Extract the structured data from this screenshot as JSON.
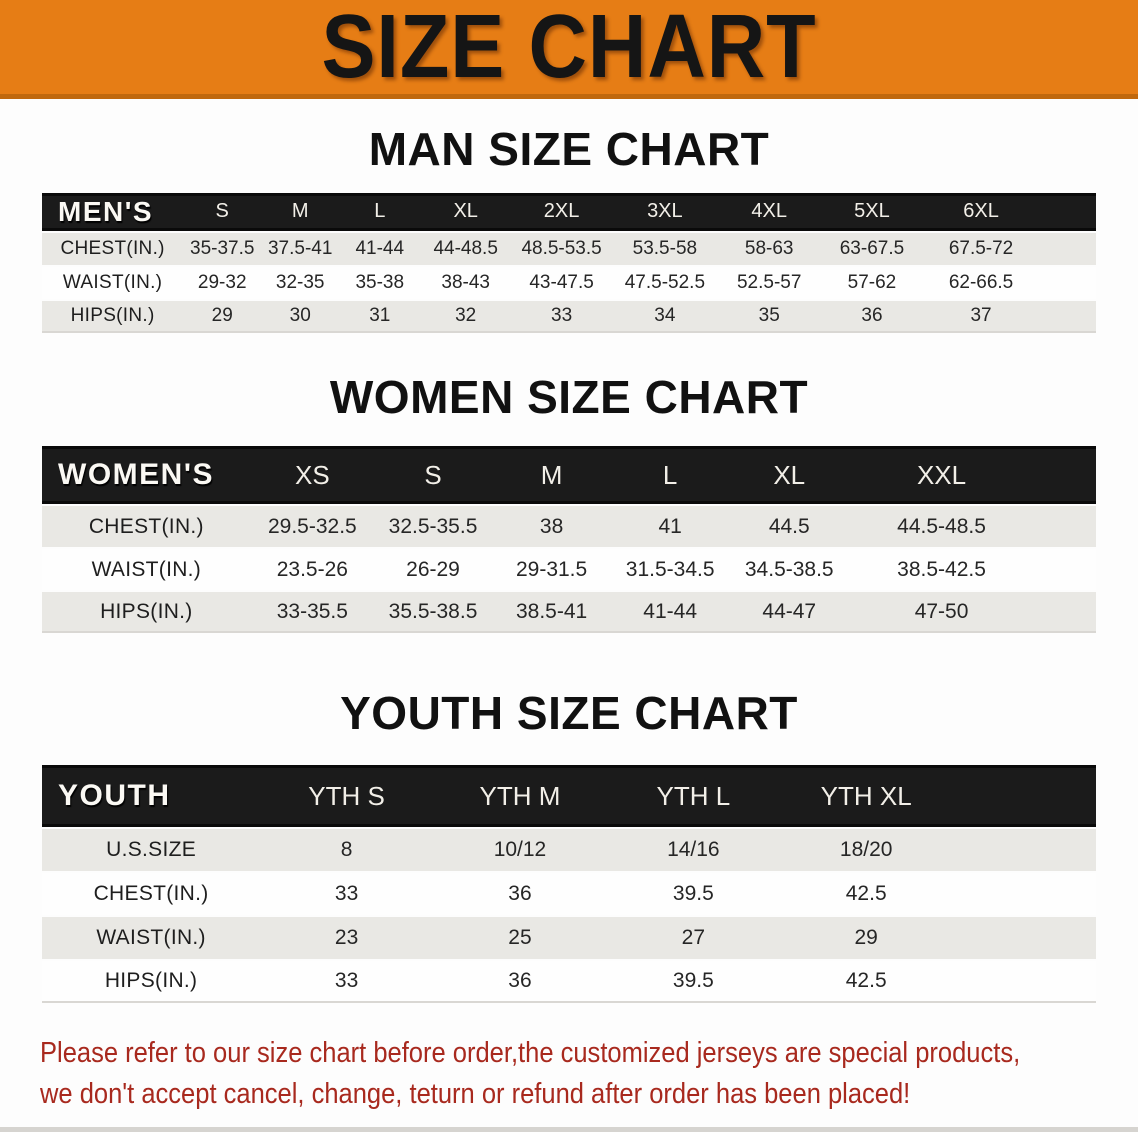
{
  "banner": {
    "title": "SIZE CHART"
  },
  "chart_data": [
    {
      "type": "table",
      "title": "MAN SIZE CHART",
      "corner_label": "MEN'S",
      "columns": [
        "S",
        "M",
        "L",
        "XL",
        "2XL",
        "3XL",
        "4XL",
        "5XL",
        "6XL"
      ],
      "rows": [
        {
          "label": "CHEST(IN.)",
          "values": [
            "35-37.5",
            "37.5-41",
            "41-44",
            "44-48.5",
            "48.5-53.5",
            "53.5-58",
            "58-63",
            "63-67.5",
            "67.5-72"
          ]
        },
        {
          "label": "WAIST(IN.)",
          "values": [
            "29-32",
            "32-35",
            "35-38",
            "38-43",
            "43-47.5",
            "47.5-52.5",
            "52.5-57",
            "57-62",
            "62-66.5"
          ]
        },
        {
          "label": "HIPS(IN.)",
          "values": [
            "29",
            "30",
            "31",
            "32",
            "33",
            "34",
            "35",
            "36",
            "37"
          ]
        }
      ]
    },
    {
      "type": "table",
      "title": "WOMEN SIZE CHART",
      "corner_label": "WOMEN'S",
      "columns": [
        "XS",
        "S",
        "M",
        "L",
        "XL",
        "XXL"
      ],
      "rows": [
        {
          "label": "CHEST(IN.)",
          "values": [
            "29.5-32.5",
            "32.5-35.5",
            "38",
            "41",
            "44.5",
            "44.5-48.5"
          ]
        },
        {
          "label": "WAIST(IN.)",
          "values": [
            "23.5-26",
            "26-29",
            "29-31.5",
            "31.5-34.5",
            "34.5-38.5",
            "38.5-42.5"
          ]
        },
        {
          "label": "HIPS(IN.)",
          "values": [
            "33-35.5",
            "35.5-38.5",
            "38.5-41",
            "41-44",
            "44-47",
            "47-50"
          ]
        }
      ]
    },
    {
      "type": "table",
      "title": "YOUTH SIZE CHART",
      "corner_label": "YOUTH",
      "columns": [
        "YTH S",
        "YTH M",
        "YTH L",
        "YTH XL"
      ],
      "rows": [
        {
          "label": "U.S.SIZE",
          "values": [
            "8",
            "10/12",
            "14/16",
            "18/20"
          ]
        },
        {
          "label": "CHEST(IN.)",
          "values": [
            "33",
            "36",
            "39.5",
            "42.5"
          ]
        },
        {
          "label": "WAIST(IN.)",
          "values": [
            "23",
            "25",
            "27",
            "29"
          ]
        },
        {
          "label": "HIPS(IN.)",
          "values": [
            "33",
            "36",
            "39.5",
            "42.5"
          ]
        }
      ]
    }
  ],
  "footer": {
    "lines": [
      "Please refer to our size chart before order,the customized jerseys are special products,",
      "we don't accept cancel, change, teturn or refund after order has been placed!"
    ]
  },
  "colors": {
    "banner-orange": "#e67d15",
    "banner-edge": "#c0680d",
    "header-black": "#1b1b1b",
    "header-border": "#0a0a0a",
    "row-gray": "#e9e8e4",
    "text-dark": "#222222",
    "disclaimer-red": "#a8291e",
    "strip-gray": "#d6d4d0"
  }
}
